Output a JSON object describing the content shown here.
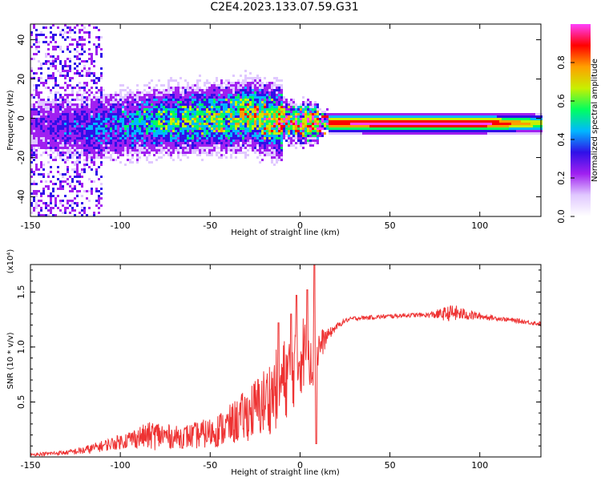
{
  "title": "C2E4.2023.133.07.59.G31",
  "chart_data": [
    {
      "type": "heatmap",
      "xlabel": "Height of straight line (km)",
      "ylabel": "Frequency (Hz)",
      "xlim": [
        -150,
        134
      ],
      "ylim": [
        -50,
        48
      ],
      "xticks": [
        -150,
        -100,
        -50,
        0,
        50,
        100
      ],
      "yticks": [
        -40,
        -20,
        0,
        20,
        40
      ],
      "colorbar": {
        "label": "Normalized spectral amplitude",
        "range": [
          0.0,
          1.0
        ],
        "ticks": [
          0.0,
          0.2,
          0.4,
          0.6,
          0.8
        ],
        "tick_labels": [
          "0.0",
          "0.2",
          "0.4",
          "0.6",
          "0.8"
        ],
        "colors": [
          "#ffffff",
          "#e0c8ff",
          "#a020f0",
          "#3010e8",
          "#00b8ff",
          "#00ff60",
          "#c8f000",
          "#ffa000",
          "#ff0000",
          "#ff40ff"
        ]
      },
      "ridge": {
        "x": [
          -150,
          -120,
          -100,
          -80,
          -60,
          -40,
          -30,
          -20,
          -10,
          0,
          10,
          50,
          100,
          134
        ],
        "freq": [
          -3,
          -4,
          -3,
          -1,
          0,
          1,
          3,
          0,
          -1,
          -2,
          -2,
          -2,
          -2,
          -2
        ],
        "peak_amplitude": [
          0.15,
          0.3,
          0.35,
          0.45,
          0.5,
          0.55,
          0.6,
          0.65,
          0.7,
          0.75,
          0.85,
          0.95,
          0.95,
          0.6
        ]
      }
    },
    {
      "type": "line",
      "xlabel": "Height of straight line (km)",
      "ylabel": "SNR (10 * v/v)",
      "scale_label": "(x10⁴)",
      "xlim": [
        -150,
        134
      ],
      "ylim": [
        0.0,
        1.75
      ],
      "xticks": [
        -150,
        -100,
        -50,
        0,
        50,
        100
      ],
      "yticks": [
        0.5,
        1.0,
        1.5
      ],
      "ytick_labels": [
        "0.5",
        "1.0",
        "1.5"
      ],
      "series": [
        {
          "color": "#ee3333",
          "x": [
            -150,
            -140,
            -130,
            -120,
            -110,
            -100,
            -90,
            -80,
            -70,
            -60,
            -50,
            -40,
            -30,
            -20,
            -15,
            -10,
            -5,
            0,
            5,
            8,
            10,
            15,
            20,
            25,
            30,
            40,
            50,
            60,
            70,
            80,
            85,
            90,
            100,
            110,
            120,
            134
          ],
          "mean": [
            0.02,
            0.03,
            0.04,
            0.06,
            0.1,
            0.14,
            0.18,
            0.2,
            0.18,
            0.19,
            0.22,
            0.28,
            0.38,
            0.5,
            0.58,
            0.68,
            0.78,
            0.92,
            1.0,
            0.9,
            0.98,
            1.1,
            1.18,
            1.24,
            1.26,
            1.27,
            1.28,
            1.29,
            1.29,
            1.3,
            1.31,
            1.3,
            1.28,
            1.26,
            1.24,
            1.21
          ],
          "amp": [
            0.01,
            0.02,
            0.02,
            0.04,
            0.05,
            0.07,
            0.1,
            0.14,
            0.1,
            0.12,
            0.14,
            0.18,
            0.24,
            0.32,
            0.36,
            0.38,
            0.38,
            0.38,
            0.32,
            0.4,
            0.2,
            0.06,
            0.03,
            0.02,
            0.02,
            0.02,
            0.02,
            0.02,
            0.02,
            0.06,
            0.08,
            0.06,
            0.03,
            0.02,
            0.02,
            0.02
          ],
          "spikes": [
            {
              "x": 8,
              "y": 1.75
            },
            {
              "x": 9,
              "y": 0.12
            },
            {
              "x": 4,
              "y": 1.52
            },
            {
              "x": -2,
              "y": 1.47
            },
            {
              "x": -12,
              "y": 1.22
            },
            {
              "x": -5,
              "y": 1.3
            }
          ]
        }
      ]
    }
  ]
}
